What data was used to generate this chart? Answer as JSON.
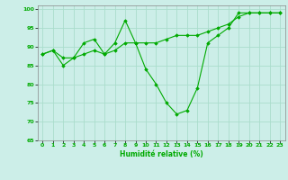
{
  "title": "",
  "xlabel": "Humidité relative (%)",
  "ylabel": "",
  "background_color": "#cceee8",
  "grid_color": "#aaddcc",
  "line_color": "#00aa00",
  "ylim": [
    65,
    101
  ],
  "xlim": [
    -0.5,
    23.5
  ],
  "yticks": [
    65,
    70,
    75,
    80,
    85,
    90,
    95,
    100
  ],
  "xticks": [
    0,
    1,
    2,
    3,
    4,
    5,
    6,
    7,
    8,
    9,
    10,
    11,
    12,
    13,
    14,
    15,
    16,
    17,
    18,
    19,
    20,
    21,
    22,
    23
  ],
  "series1": [
    88,
    89,
    87,
    87,
    91,
    92,
    88,
    91,
    97,
    91,
    84,
    80,
    75,
    72,
    73,
    79,
    91,
    93,
    95,
    99,
    99,
    99,
    99,
    99
  ],
  "series2": [
    88,
    89,
    85,
    87,
    88,
    89,
    88,
    89,
    91,
    91,
    91,
    91,
    92,
    93,
    93,
    93,
    94,
    95,
    96,
    98,
    99,
    99,
    99,
    99
  ]
}
